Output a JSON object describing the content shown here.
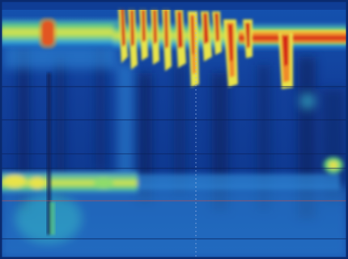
{
  "image": {
    "kind": "pressure-topography-heatmap",
    "palette": {
      "deep": "#0b2f86",
      "mid": "#1a5fc0",
      "cool": "#2e86d6",
      "cyan": "#3ec7d8",
      "green": "#5fd07a",
      "yellow": "#e8e34a",
      "orange": "#f08a2a",
      "red": "#d42318",
      "dark": "#0a1f55"
    },
    "bands": [
      {
        "label": "",
        "level": "high"
      },
      {
        "label": "",
        "level": "low"
      }
    ]
  }
}
